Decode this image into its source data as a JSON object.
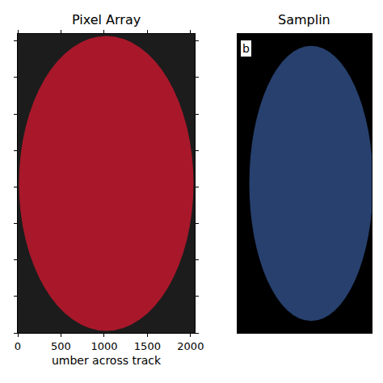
{
  "chart_data": [
    {
      "type": "disk",
      "title": "Pixel Array",
      "x_label": "umber across track",
      "xlim": [
        0,
        2048
      ],
      "xticks": [
        0,
        500,
        1000,
        1500,
        2000
      ],
      "ylim": [
        0,
        2048
      ],
      "yticks": [
        0,
        250,
        500,
        750,
        1000,
        1250,
        1500,
        1750,
        2000
      ],
      "tick_labels": "x",
      "disk": {
        "center": [
          1024,
          1024
        ],
        "radius": 1010
      },
      "color": "#a8182a"
    },
    {
      "type": "image",
      "title": "Samplin",
      "panel": "b",
      "xlim": [
        0,
        1
      ],
      "ylim": [
        0,
        1
      ],
      "tick_labels": false,
      "disk": {
        "center": [
          0.55,
          0.5
        ],
        "radius": 0.46
      },
      "color": "#27406e"
    }
  ]
}
